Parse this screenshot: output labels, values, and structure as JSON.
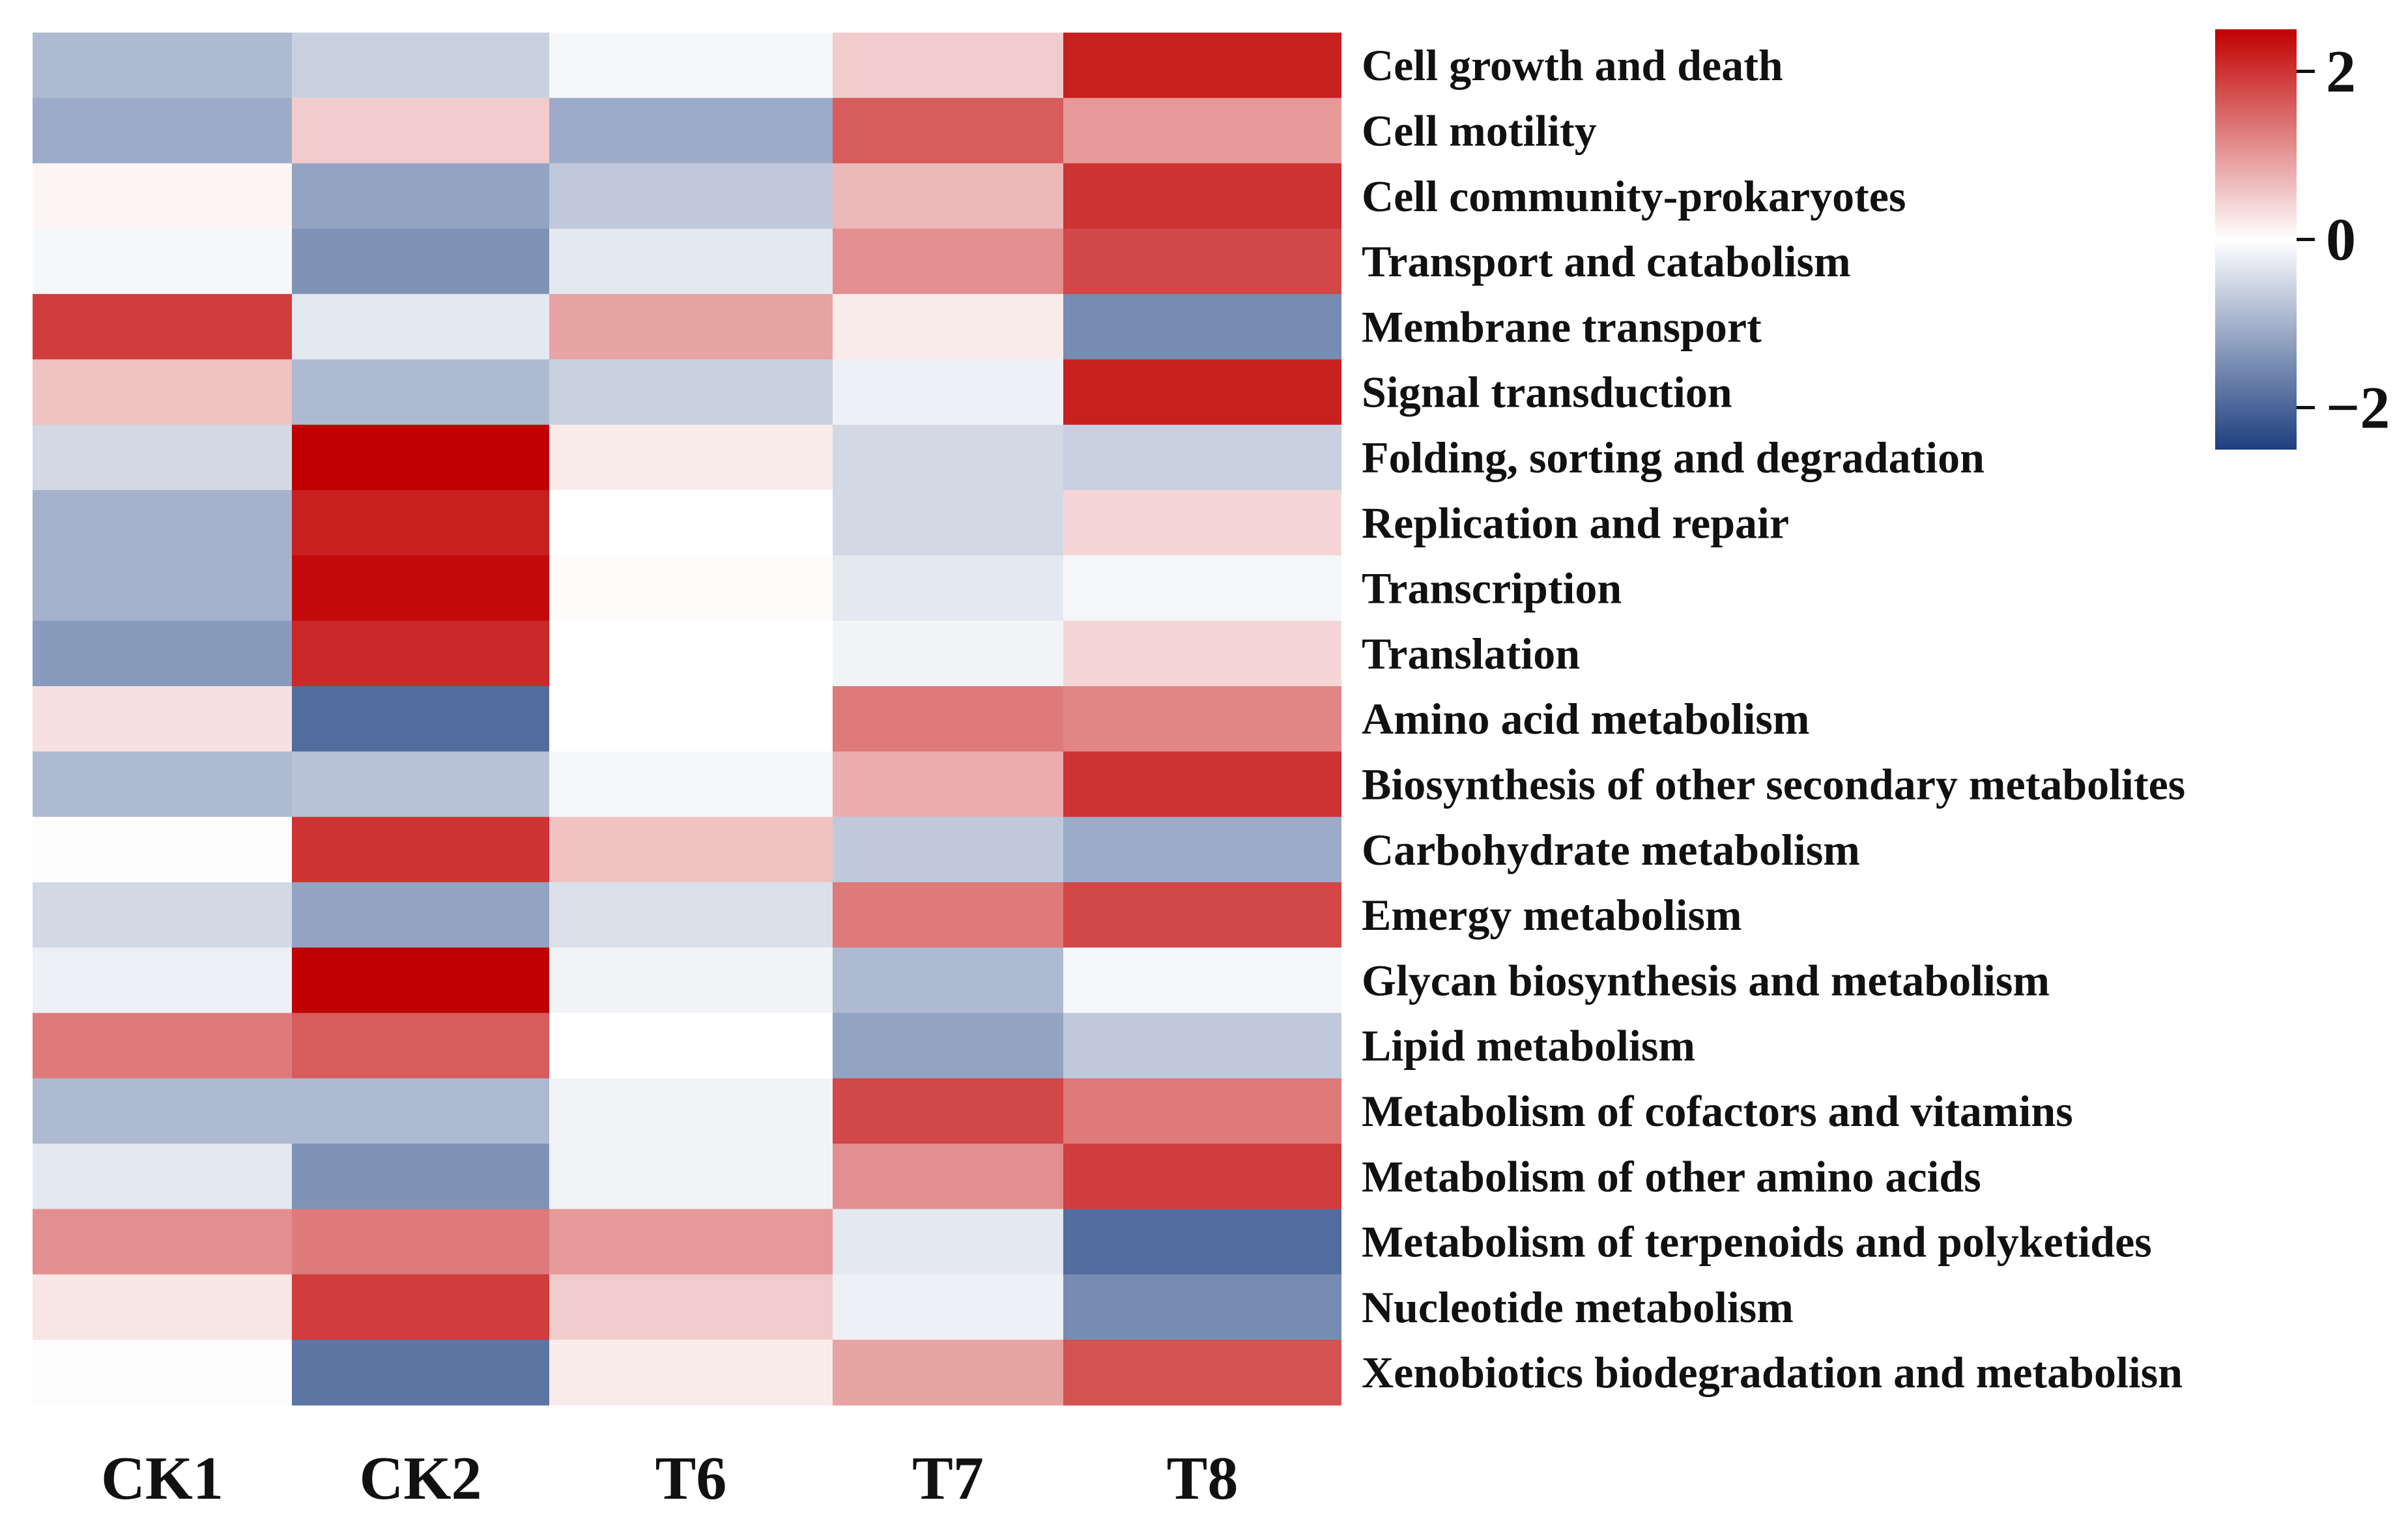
{
  "chart_data": {
    "type": "heatmap",
    "columns": [
      "CK1",
      "CK2",
      "T6",
      "T7",
      "T8"
    ],
    "rows": [
      "Cell growth and death",
      "Cell motility",
      "Cell community-prokaryotes",
      "Transport and catabolism",
      "Membrane transport",
      "Signal transduction",
      "Folding, sorting and degradation",
      "Replication and repair",
      "Transcription",
      "Translation",
      "Amino acid metabolism",
      "Biosynthesis of other secondary metabolites",
      "Carbohydrate metabolism",
      "Emergy metabolism",
      "Glycan biosynthesis and metabolism",
      "Lipid metabolism",
      "Metabolism of cofactors and vitamins",
      "Metabolism of other amino acids",
      "Metabolism of terpenoids and polyketides",
      "Nucleotide metabolism",
      "Xenobiotics biodegradation and metabolisn"
    ],
    "values": [
      [
        -0.9,
        -0.6,
        -0.1,
        0.5,
        2.2
      ],
      [
        -1.1,
        0.5,
        -1.1,
        1.6,
        1.0
      ],
      [
        0.1,
        -1.2,
        -0.7,
        0.7,
        2.0
      ],
      [
        -0.1,
        -1.4,
        -0.3,
        1.1,
        1.8
      ],
      [
        1.9,
        -0.3,
        0.9,
        0.2,
        -1.5
      ],
      [
        0.6,
        -0.9,
        -0.6,
        -0.2,
        2.2
      ],
      [
        -0.5,
        2.5,
        0.2,
        -0.5,
        -0.6
      ],
      [
        -1.0,
        2.2,
        0.0,
        -0.5,
        0.4
      ],
      [
        -1.0,
        2.4,
        0.05,
        -0.3,
        -0.1
      ],
      [
        -1.3,
        2.1,
        0.0,
        -0.15,
        0.4
      ],
      [
        0.3,
        -1.9,
        0.0,
        1.3,
        1.2
      ],
      [
        -0.9,
        -0.8,
        -0.1,
        0.8,
        2.0
      ],
      [
        0.02,
        2.0,
        0.6,
        -0.7,
        -1.1
      ],
      [
        -0.5,
        -1.2,
        -0.4,
        1.3,
        1.8
      ],
      [
        -0.2,
        2.6,
        -0.15,
        -0.9,
        -0.1
      ],
      [
        1.3,
        1.6,
        0.0,
        -1.2,
        -0.7
      ],
      [
        -0.9,
        -0.9,
        -0.15,
        1.8,
        1.3
      ],
      [
        -0.3,
        -1.4,
        -0.15,
        1.1,
        1.9
      ],
      [
        1.1,
        1.3,
        1.0,
        -0.3,
        -1.9
      ],
      [
        0.25,
        1.9,
        0.5,
        -0.2,
        -1.5
      ],
      [
        0.02,
        -1.8,
        0.2,
        0.9,
        1.7
      ]
    ],
    "colorbar": {
      "range": [
        -2.5,
        2.5
      ],
      "ticks": [
        2,
        0,
        -2
      ],
      "tick_labels": [
        "2",
        "0",
        "−2"
      ],
      "placement": "top-right"
    },
    "colors": {
      "low": "#1d3f7f",
      "mid": "#ffffff",
      "high": "#c00000"
    }
  }
}
